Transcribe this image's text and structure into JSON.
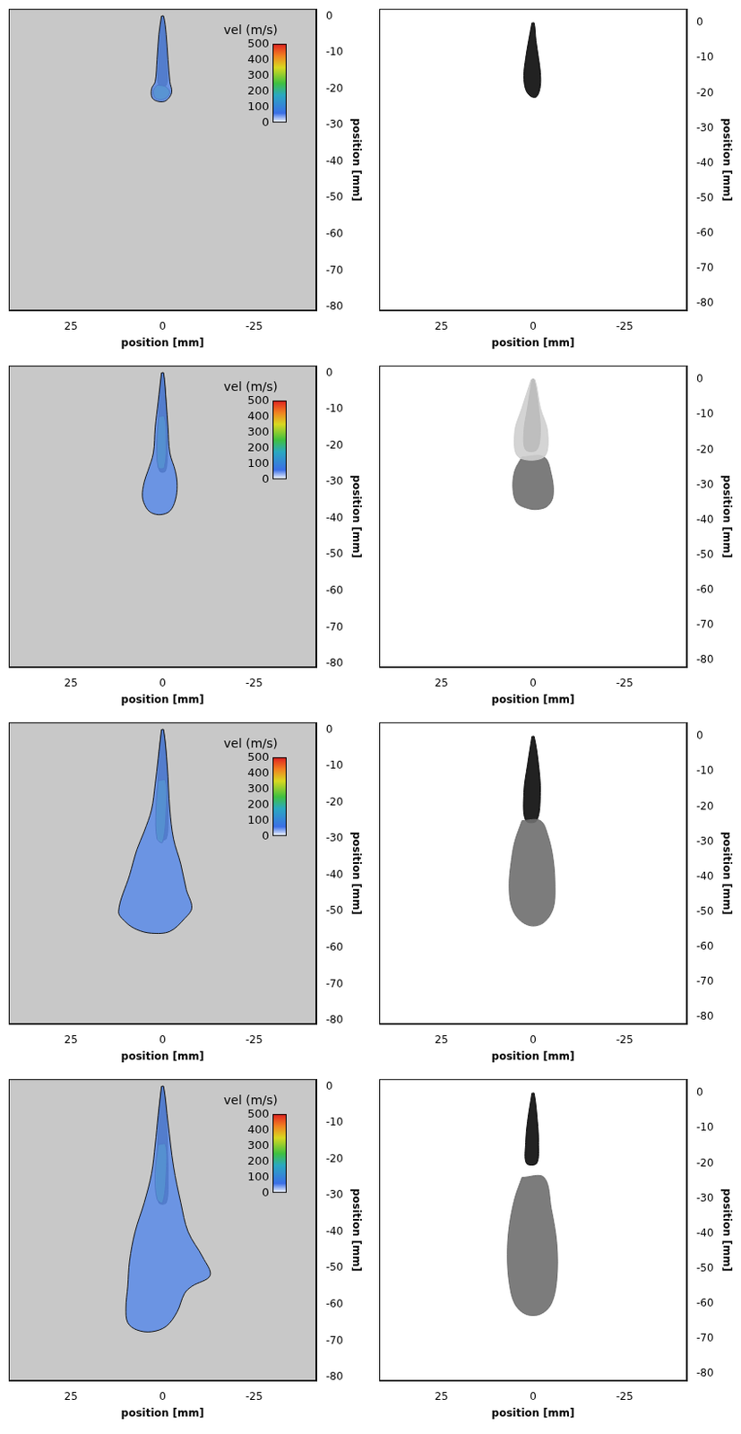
{
  "chart_data": [
    {
      "type": "scatter",
      "xlabel": "position [mm]",
      "ylabel": "position [mm]",
      "xlim": [
        42,
        -42
      ],
      "ylim": [
        -81,
        2
      ],
      "xticks": [
        25,
        0,
        -25
      ],
      "yticks": [
        0,
        -10,
        -20,
        -30,
        -40,
        -50,
        -60,
        -70,
        -80
      ],
      "grid": false,
      "colorbar": {
        "label": "vel (m/s)",
        "range": [
          0,
          500
        ],
        "ticks": [
          0,
          100,
          200,
          300,
          400,
          500
        ]
      },
      "series": [
        {
          "color": "#5a8be8",
          "x": [
            0.3,
            1.0,
            1.5,
            2.0,
            3.0,
            2.8,
            1.0,
            -1.0,
            -2.5,
            -2.0,
            -1.5,
            -1.0,
            -0.3,
            0.3
          ],
          "values": [
            0,
            -5,
            -12,
            -18,
            -20,
            -22.5,
            -23.5,
            -23.2,
            -21,
            -18,
            -12,
            -5,
            0,
            0
          ]
        },
        {
          "color": "#3cc850",
          "x": [
            1.5,
            2.5,
            2.0,
            0.5,
            -1.0,
            -2.0,
            -1.0,
            0.5,
            1.5
          ],
          "values": [
            -19,
            -20.5,
            -22.5,
            -23,
            -22.5,
            -21,
            -19.5,
            -19,
            -19
          ]
        },
        {
          "color": "#0d1520",
          "x": [
            0.2,
            0.8,
            1.2,
            1.0,
            -1.0,
            -1.2,
            -0.8,
            -0.2,
            0.2
          ],
          "values": [
            0,
            -6,
            -14,
            -19,
            -19,
            -14,
            -6,
            0,
            0
          ]
        }
      ]
    },
    {
      "type": "scatter",
      "xlabel": "position [mm]",
      "ylabel": "position [mm]",
      "xlim": [
        42,
        -42
      ],
      "ylim": [
        -82,
        4
      ],
      "xticks": [
        25,
        0,
        -25
      ],
      "yticks": [
        0,
        -10,
        -20,
        -30,
        -40,
        -50,
        -60,
        -70,
        -80
      ],
      "grid": false,
      "series": [
        {
          "color": "#0a0a0a",
          "x": [
            0.3,
            1.2,
            2.0,
            2.5,
            2.0,
            0.5,
            -1.0,
            -2.0,
            -2.0,
            -1.5,
            -0.8,
            -0.3,
            0.3
          ],
          "values": [
            0,
            -5,
            -10,
            -15,
            -19,
            -21,
            -21,
            -18,
            -14,
            -10,
            -5,
            0,
            0
          ]
        }
      ]
    },
    {
      "type": "scatter",
      "xlabel": "position [mm]",
      "ylabel": "position [mm]",
      "xlim": [
        42,
        -42
      ],
      "ylim": [
        -81,
        2
      ],
      "xticks": [
        25,
        0,
        -25
      ],
      "yticks": [
        0,
        -10,
        -20,
        -30,
        -40,
        -50,
        -60,
        -70,
        -80
      ],
      "grid": false,
      "colorbar": {
        "label": "vel (m/s)",
        "range": [
          0,
          500
        ],
        "ticks": [
          0,
          100,
          200,
          300,
          400,
          500
        ]
      },
      "series": [
        {
          "color": "#5a8be8",
          "x": [
            0.3,
            1.2,
            2.0,
            2.5,
            4.0,
            5.0,
            5.5,
            4.5,
            3.0,
            0.5,
            -2.0,
            -3.5,
            -4.0,
            -3.5,
            -2.0,
            -1.5,
            -1.0,
            -0.3,
            0.3
          ],
          "values": [
            0,
            -8,
            -15,
            -22,
            -27,
            -30,
            -34,
            -37,
            -38.5,
            -39,
            -38,
            -35,
            -31,
            -27,
            -22,
            -15,
            -8,
            0,
            0
          ]
        },
        {
          "color": "#3cc850",
          "x": [
            1.0,
            1.5,
            1.2,
            -0.5,
            -1.0,
            -0.5,
            1.0
          ],
          "values": [
            -12,
            -18,
            -26,
            -26,
            -18,
            -12,
            -12
          ]
        },
        {
          "color": "#0d1520",
          "x": [
            0.2,
            0.8,
            1.2,
            1.3,
            0.8,
            -0.8,
            -1.3,
            -1.2,
            -0.8,
            -0.2,
            0.2
          ],
          "values": [
            0,
            -6,
            -14,
            -22,
            -27,
            -27,
            -22,
            -14,
            -6,
            0,
            0
          ]
        }
      ]
    },
    {
      "type": "scatter",
      "xlabel": "position [mm]",
      "ylabel": "position [mm]",
      "xlim": [
        42,
        -42
      ],
      "ylim": [
        -82,
        4
      ],
      "xticks": [
        25,
        0,
        -25
      ],
      "yticks": [
        0,
        -10,
        -20,
        -30,
        -40,
        -50,
        -60,
        -70,
        -80
      ],
      "grid": false,
      "series": [
        {
          "color": "#cfcfcf",
          "x": [
            0.5,
            3.0,
            5.0,
            4.0,
            -3.0,
            -4.0,
            -2.0,
            -0.5,
            0.5
          ],
          "values": [
            0,
            -8,
            -15,
            -22,
            -22,
            -15,
            -8,
            0,
            0
          ]
        },
        {
          "color": "#6e6e6e",
          "x": [
            3.0,
            5.0,
            5.5,
            4.5,
            2.0,
            -1.0,
            -4.0,
            -5.5,
            -5.0,
            -3.0,
            3.0
          ],
          "values": [
            -22,
            -26,
            -31,
            -35,
            -36.5,
            -37,
            -36,
            -33,
            -27,
            -22,
            -22
          ]
        },
        {
          "color": "#0a0a0a",
          "x": [
            0.3,
            1.5,
            2.5,
            2.0,
            -1.0,
            -2.0,
            -1.5,
            -0.3,
            0.3
          ],
          "values": [
            0,
            -8,
            -15,
            -20,
            -20,
            -15,
            -8,
            0,
            0
          ]
        }
      ]
    },
    {
      "type": "scatter",
      "xlabel": "position [mm]",
      "ylabel": "position [mm]",
      "xlim": [
        42,
        -42
      ],
      "ylim": [
        -81,
        2
      ],
      "xticks": [
        25,
        0,
        -25
      ],
      "yticks": [
        0,
        -10,
        -20,
        -30,
        -40,
        -50,
        -60,
        -70,
        -80
      ],
      "grid": false,
      "colorbar": {
        "label": "vel (m/s)",
        "range": [
          0,
          500
        ],
        "ticks": [
          0,
          100,
          200,
          300,
          400,
          500
        ]
      },
      "series": [
        {
          "color": "#5a8be8",
          "x": [
            0.3,
            1.2,
            2.0,
            3.0,
            5.0,
            7.0,
            9.0,
            12.0,
            10.0,
            7.0,
            3.0,
            -2.0,
            -6.0,
            -8.0,
            -6.5,
            -5.0,
            -3.0,
            -2.0,
            -1.3,
            -0.3,
            0.3
          ],
          "values": [
            0,
            -8,
            -15,
            -22,
            -28,
            -33,
            -40,
            -50,
            -53,
            -55,
            -56,
            -55.5,
            -52,
            -49,
            -44,
            -37,
            -30,
            -22,
            -10,
            0,
            0
          ]
        },
        {
          "color": "#3cc850",
          "x": [
            1.2,
            1.8,
            1.5,
            0,
            -1.0,
            -0.8,
            1.2
          ],
          "values": [
            -14,
            -22,
            -30,
            -31,
            -22,
            -14,
            -14
          ]
        },
        {
          "color": "#0d1520",
          "x": [
            0.2,
            0.9,
            1.3,
            1.5,
            1.0,
            -1.0,
            -1.5,
            -1.3,
            -0.9,
            -0.2,
            0.2
          ],
          "values": [
            0,
            -6,
            -15,
            -24,
            -30,
            -30,
            -24,
            -15,
            -6,
            0,
            0
          ]
        }
      ]
    },
    {
      "type": "scatter",
      "xlabel": "position [mm]",
      "ylabel": "position [mm]",
      "xlim": [
        42,
        -42
      ],
      "ylim": [
        -82,
        4
      ],
      "xticks": [
        25,
        0,
        -25
      ],
      "yticks": [
        0,
        -10,
        -20,
        -30,
        -40,
        -50,
        -60,
        -70,
        -80
      ],
      "grid": false,
      "series": [
        {
          "color": "#6e6e6e",
          "x": [
            3.0,
            5.0,
            6.0,
            6.5,
            6.0,
            4.0,
            0.5,
            -3.0,
            -5.5,
            -6.0,
            -5.5,
            -4.0,
            -2.0,
            3.0
          ],
          "values": [
            -24,
            -30,
            -36,
            -42,
            -48,
            -52,
            -54,
            -53,
            -49,
            -43,
            -35,
            -28,
            -24,
            -24
          ]
        },
        {
          "color": "#0a0a0a",
          "x": [
            0.3,
            1.5,
            2.5,
            2.0,
            -1.0,
            -2.0,
            -1.5,
            -0.3,
            0.3
          ],
          "values": [
            0,
            -8,
            -16,
            -24,
            -24,
            -16,
            -8,
            0,
            0
          ]
        }
      ]
    },
    {
      "type": "scatter",
      "xlabel": "position [mm]",
      "ylabel": "position [mm]",
      "xlim": [
        42,
        -42
      ],
      "ylim": [
        -81,
        2
      ],
      "xticks": [
        25,
        0,
        -25
      ],
      "yticks": [
        0,
        -10,
        -20,
        -30,
        -40,
        -50,
        -60,
        -70,
        -80
      ],
      "grid": false,
      "colorbar": {
        "label": "vel (m/s)",
        "range": [
          0,
          500
        ],
        "ticks": [
          0,
          100,
          200,
          300,
          400,
          500
        ]
      },
      "series": [
        {
          "color": "#5a8be8",
          "x": [
            0.3,
            1.2,
            2.0,
            3.0,
            5.0,
            7.5,
            9.0,
            9.5,
            10.0,
            9.5,
            7.0,
            3.0,
            -1.0,
            -4.0,
            -6.0,
            -8.0,
            -13.0,
            -11.0,
            -7.0,
            -5.0,
            -3.0,
            -1.5,
            -0.3,
            0.3
          ],
          "values": [
            0,
            -8,
            -16,
            -24,
            -32,
            -40,
            -48,
            -55,
            -61,
            -65,
            -67,
            -67.5,
            -66,
            -62,
            -57,
            -55,
            -52,
            -47,
            -40,
            -32,
            -22,
            -10,
            0,
            0
          ]
        },
        {
          "color": "#3cc850",
          "x": [
            1.2,
            2.0,
            1.5,
            0,
            -1.0,
            -0.8,
            1.2
          ],
          "values": [
            -16,
            -24,
            -31,
            -32,
            -24,
            -16,
            -16
          ]
        },
        {
          "color": "#0d1520",
          "x": [
            0.2,
            0.9,
            1.3,
            1.5,
            1.0,
            -1.0,
            -1.5,
            -1.3,
            -0.9,
            -0.2,
            0.2
          ],
          "values": [
            0,
            -6,
            -15,
            -26,
            -32,
            -32,
            -26,
            -15,
            -6,
            0,
            0
          ]
        }
      ]
    },
    {
      "type": "scatter",
      "xlabel": "position [mm]",
      "ylabel": "position [mm]",
      "xlim": [
        42,
        -42
      ],
      "ylim": [
        -82,
        4
      ],
      "xticks": [
        25,
        0,
        -25
      ],
      "yticks": [
        0,
        -10,
        -20,
        -30,
        -40,
        -50,
        -60,
        -70,
        -80
      ],
      "grid": false,
      "series": [
        {
          "color": "#6e6e6e",
          "x": [
            3.0,
            5.0,
            6.5,
            7.0,
            6.5,
            5.0,
            2.0,
            -2.0,
            -5.0,
            -6.5,
            -6.5,
            -5.0,
            -3.0,
            3.0
          ],
          "values": [
            -24,
            -30,
            -38,
            -46,
            -54,
            -60,
            -63,
            -63,
            -60,
            -53,
            -43,
            -33,
            -24,
            -24
          ]
        },
        {
          "color": "#0a0a0a",
          "x": [
            0.3,
            1.5,
            2.0,
            1.8,
            -1.0,
            -1.5,
            -1.2,
            -0.3,
            0.3
          ],
          "values": [
            0,
            -8,
            -14,
            -20,
            -20,
            -14,
            -8,
            0,
            0
          ]
        }
      ]
    }
  ]
}
